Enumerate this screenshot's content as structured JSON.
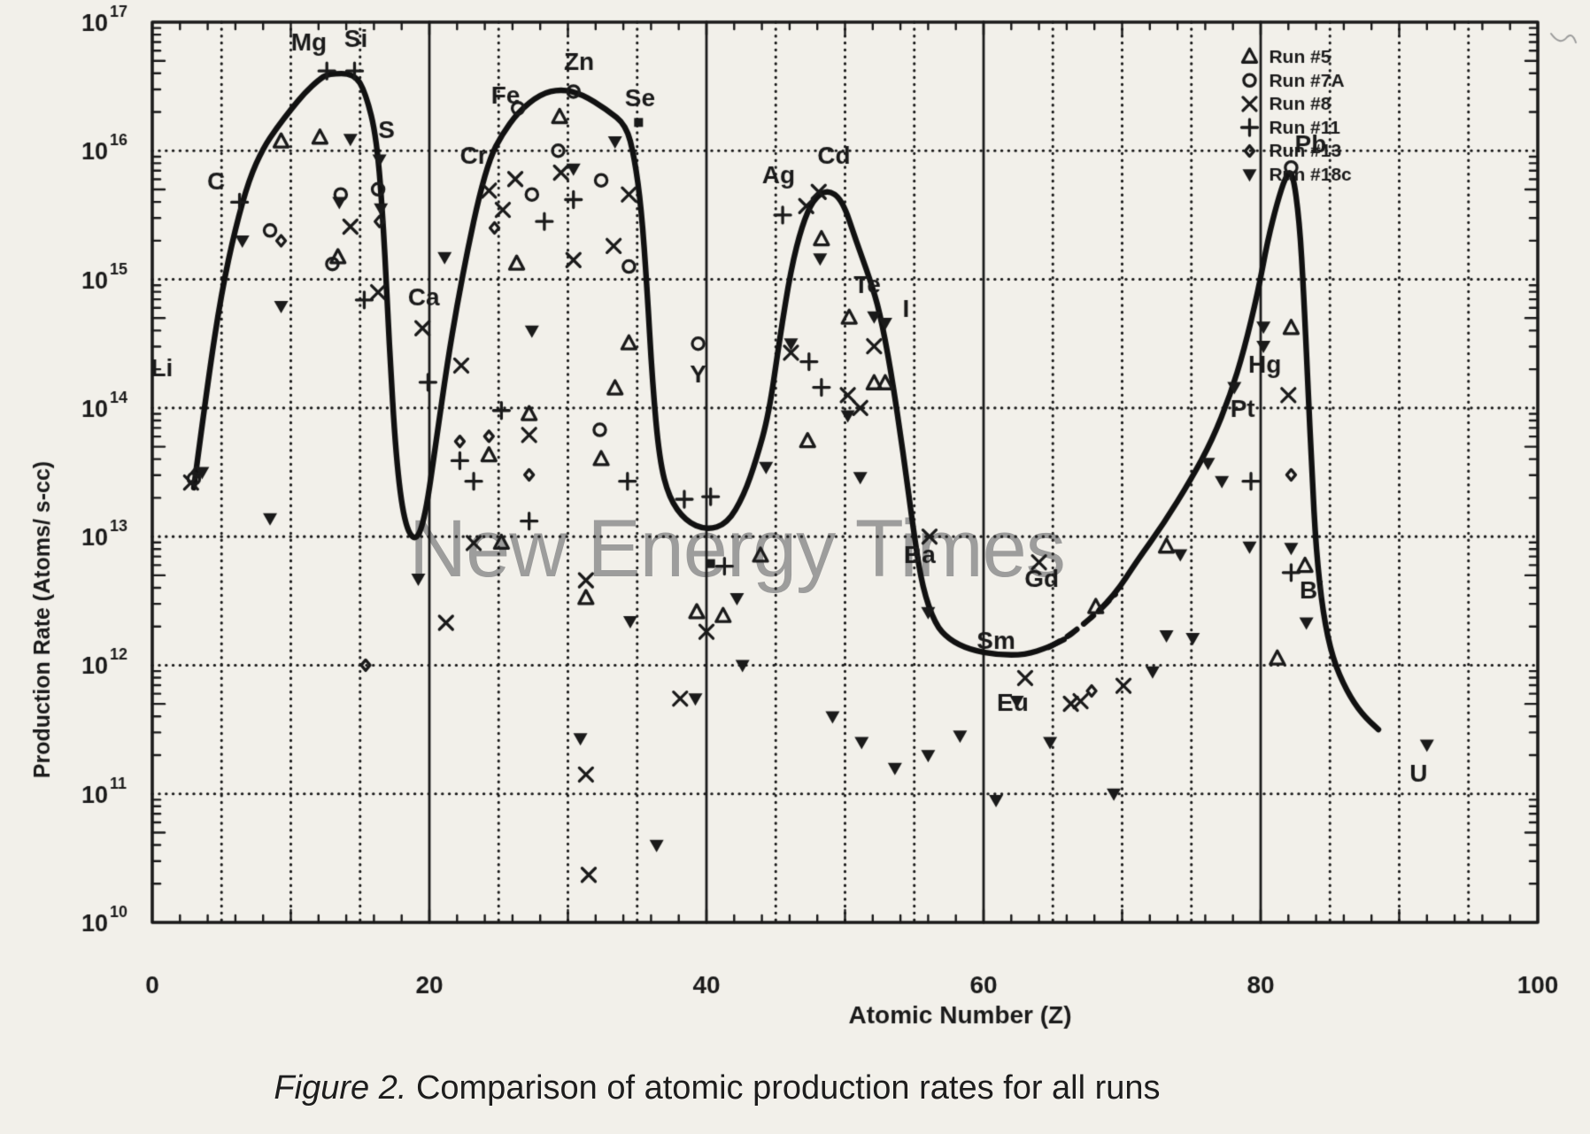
{
  "watermark": "New Energy Times",
  "caption": {
    "prefix": "Figure 2.",
    "text": " Comparison of atomic production rates for all runs"
  },
  "chart_data": {
    "type": "scatter",
    "title": "",
    "xlabel": "Atomic Number (Z)",
    "ylabel": "Production Rate (Atoms/ s-cc)",
    "xlim": [
      0,
      100
    ],
    "x_major_ticks": [
      0,
      20,
      40,
      60,
      80,
      100
    ],
    "x_grid_dotted_step": 5,
    "x_grid_solid": [
      20,
      40,
      60,
      80
    ],
    "y_scale": "log",
    "ylim_exponents": [
      10,
      17
    ],
    "y_tick_labels": [
      {
        "base": "10",
        "exp": "17"
      },
      {
        "base": "10",
        "exp": "16"
      },
      {
        "base": "10",
        "exp": "15"
      },
      {
        "base": "10",
        "exp": "14"
      },
      {
        "base": "10",
        "exp": "13"
      },
      {
        "base": "10",
        "exp": "12"
      },
      {
        "base": "10",
        "exp": "11"
      },
      {
        "base": "10",
        "exp": "10"
      }
    ],
    "grid": "dotted-log-decades",
    "legend_position": "top-right-inside",
    "element_labels": [
      {
        "text": "Li",
        "z": 0.7,
        "log": 14.3
      },
      {
        "text": "C",
        "z": 4.6,
        "log": 15.75
      },
      {
        "text": "Mg",
        "z": 11.3,
        "log": 16.83
      },
      {
        "text": "Si",
        "z": 14.7,
        "log": 16.86
      },
      {
        "text": "S",
        "z": 16.9,
        "log": 16.15
      },
      {
        "text": "Ca",
        "z": 19.6,
        "log": 14.85
      },
      {
        "text": "Cr",
        "z": 23.2,
        "log": 15.95
      },
      {
        "text": "Fe",
        "z": 25.5,
        "log": 16.42
      },
      {
        "text": "Zn",
        "z": 30.8,
        "log": 16.68
      },
      {
        "text": "Se",
        "z": 35.2,
        "log": 16.4
      },
      {
        "text": "Y",
        "z": 39.4,
        "log": 14.25
      },
      {
        "text": "Ag",
        "z": 45.2,
        "log": 15.8
      },
      {
        "text": "Cd",
        "z": 49.2,
        "log": 15.95
      },
      {
        "text": "Te",
        "z": 51.6,
        "log": 14.95
      },
      {
        "text": "I",
        "z": 54.4,
        "log": 14.76
      },
      {
        "text": "Ba",
        "z": 55.4,
        "log": 12.85
      },
      {
        "text": "Sm",
        "z": 60.9,
        "log": 12.18
      },
      {
        "text": "Eu",
        "z": 62.1,
        "log": 11.7
      },
      {
        "text": "Gd",
        "z": 64.2,
        "log": 12.66
      },
      {
        "text": "Pt",
        "z": 78.7,
        "log": 13.98
      },
      {
        "text": "Hg",
        "z": 80.3,
        "log": 14.33
      },
      {
        "text": "Pb",
        "z": 83.6,
        "log": 16.04
      },
      {
        "text": "Bi",
        "z": 83.7,
        "log": 12.57
      },
      {
        "text": "U",
        "z": 91.4,
        "log": 11.15
      }
    ],
    "curve": [
      [
        3,
        13.38
      ],
      [
        4,
        14.2
      ],
      [
        5,
        14.9
      ],
      [
        6,
        15.4
      ],
      [
        7,
        15.78
      ],
      [
        8,
        16.02
      ],
      [
        9,
        16.18
      ],
      [
        10,
        16.32
      ],
      [
        11,
        16.45
      ],
      [
        12,
        16.55
      ],
      [
        12.7,
        16.6
      ],
      [
        14.6,
        16.6
      ],
      [
        15.4,
        16.45
      ],
      [
        16.2,
        16.1
      ],
      [
        16.7,
        15.4
      ],
      [
        17.1,
        14.5
      ],
      [
        17.6,
        13.6
      ],
      [
        18.2,
        13.1
      ],
      [
        19,
        12.95
      ],
      [
        19.7,
        13.15
      ],
      [
        20.5,
        13.75
      ],
      [
        21.3,
        14.35
      ],
      [
        22,
        14.8
      ],
      [
        22.8,
        15.25
      ],
      [
        23.6,
        15.65
      ],
      [
        24.4,
        15.95
      ],
      [
        25.2,
        16.12
      ],
      [
        26.4,
        16.3
      ],
      [
        28,
        16.44
      ],
      [
        29.5,
        16.48
      ],
      [
        31,
        16.44
      ],
      [
        32.8,
        16.32
      ],
      [
        34.2,
        16.2
      ],
      [
        34.8,
        15.95
      ],
      [
        35.3,
        15.55
      ],
      [
        35.7,
        14.95
      ],
      [
        36.1,
        14.2
      ],
      [
        36.6,
        13.6
      ],
      [
        37.3,
        13.3
      ],
      [
        38.5,
        13.12
      ],
      [
        40,
        13.05
      ],
      [
        41.5,
        13.1
      ],
      [
        42.7,
        13.32
      ],
      [
        43.6,
        13.6
      ],
      [
        44.5,
        13.95
      ],
      [
        45.3,
        14.55
      ],
      [
        46.1,
        15.08
      ],
      [
        46.9,
        15.42
      ],
      [
        47.7,
        15.62
      ],
      [
        48.7,
        15.7
      ],
      [
        49.8,
        15.62
      ],
      [
        50.8,
        15.3
      ],
      [
        51.8,
        15.0
      ],
      [
        52.5,
        14.75
      ],
      [
        53.3,
        14.3
      ],
      [
        54.2,
        13.65
      ],
      [
        55,
        13.0
      ],
      [
        55.6,
        12.6
      ],
      [
        56.5,
        12.32
      ],
      [
        57.5,
        12.2
      ],
      [
        59,
        12.12
      ],
      [
        61,
        12.08
      ],
      [
        63,
        12.08
      ],
      [
        64.7,
        12.14
      ],
      [
        65.8,
        12.2
      ],
      [
        67,
        12.3
      ],
      [
        68.3,
        12.42
      ],
      [
        69.5,
        12.55
      ],
      [
        71,
        12.8
      ],
      [
        73,
        13.1
      ],
      [
        75,
        13.45
      ],
      [
        76.5,
        13.75
      ],
      [
        77.8,
        14.1
      ],
      [
        78.8,
        14.45
      ],
      [
        79.8,
        14.9
      ],
      [
        80.5,
        15.3
      ],
      [
        81.2,
        15.6
      ],
      [
        81.8,
        15.8
      ],
      [
        82.3,
        15.85
      ],
      [
        82.8,
        15.45
      ],
      [
        83.1,
        14.9
      ],
      [
        83.4,
        14.2
      ],
      [
        83.7,
        13.5
      ],
      [
        84,
        12.9
      ],
      [
        84.5,
        12.4
      ],
      [
        85.2,
        12.05
      ],
      [
        86.2,
        11.8
      ],
      [
        87.3,
        11.62
      ],
      [
        88.5,
        11.5
      ]
    ],
    "curve_dashed_z_range": [
      65.2,
      69.6
    ],
    "extra_filled_squares": [
      [
        35.1,
        16.22
      ],
      [
        40.3,
        12.79
      ]
    ],
    "series": [
      {
        "name": "Run #5",
        "marker": "triangle-open",
        "points": [
          [
            9.3,
            16.07
          ],
          [
            12.1,
            16.1
          ],
          [
            13.4,
            15.17
          ],
          [
            24.3,
            13.63
          ],
          [
            25.2,
            12.95
          ],
          [
            26.3,
            15.12
          ],
          [
            27.2,
            13.95
          ],
          [
            29.4,
            16.26
          ],
          [
            31.3,
            12.52
          ],
          [
            32.4,
            13.6
          ],
          [
            33.4,
            14.15
          ],
          [
            34.4,
            14.5
          ],
          [
            39.3,
            12.41
          ],
          [
            41.2,
            12.38
          ],
          [
            43.9,
            12.85
          ],
          [
            47.3,
            13.74
          ],
          [
            48.3,
            15.31
          ],
          [
            50.3,
            14.7
          ],
          [
            52.1,
            14.19
          ],
          [
            52.9,
            14.19
          ],
          [
            68.1,
            12.45
          ],
          [
            73.2,
            12.92
          ],
          [
            81.2,
            12.05
          ],
          [
            82.2,
            14.62
          ],
          [
            83.2,
            12.77
          ]
        ]
      },
      {
        "name": "Run #7A",
        "marker": "circle-open",
        "points": [
          [
            3.0,
            13.45
          ],
          [
            8.5,
            15.38
          ],
          [
            13.0,
            15.12
          ],
          [
            13.6,
            15.66
          ],
          [
            16.3,
            15.7
          ],
          [
            26.4,
            16.33
          ],
          [
            27.4,
            15.66
          ],
          [
            29.3,
            16.0
          ],
          [
            30.4,
            16.46
          ],
          [
            32.4,
            15.77
          ],
          [
            32.3,
            13.83
          ],
          [
            34.4,
            15.1
          ],
          [
            39.4,
            14.5
          ],
          [
            82.2,
            15.87
          ]
        ]
      },
      {
        "name": "Run #8",
        "marker": "x-cross",
        "points": [
          [
            2.8,
            13.42
          ],
          [
            14.3,
            15.41
          ],
          [
            16.3,
            14.9
          ],
          [
            19.5,
            14.62
          ],
          [
            21.2,
            12.33
          ],
          [
            22.3,
            14.33
          ],
          [
            23.2,
            12.95
          ],
          [
            24.3,
            15.69
          ],
          [
            25.3,
            15.54
          ],
          [
            26.2,
            15.78
          ],
          [
            27.2,
            13.79
          ],
          [
            29.5,
            15.83
          ],
          [
            30.4,
            15.15
          ],
          [
            31.3,
            12.66
          ],
          [
            31.3,
            11.15
          ],
          [
            31.5,
            10.37
          ],
          [
            33.3,
            15.26
          ],
          [
            34.4,
            15.66
          ],
          [
            38.1,
            11.74
          ],
          [
            40.0,
            12.26
          ],
          [
            46.1,
            14.43
          ],
          [
            47.2,
            15.57
          ],
          [
            48.1,
            15.68
          ],
          [
            50.2,
            14.1
          ],
          [
            51.1,
            14.0
          ],
          [
            52.1,
            14.48
          ],
          [
            56.1,
            13.0
          ],
          [
            63.0,
            11.9
          ],
          [
            64.0,
            12.8
          ],
          [
            66.3,
            11.7
          ],
          [
            67.0,
            11.72
          ],
          [
            70.1,
            11.84
          ],
          [
            82.0,
            14.1
          ]
        ]
      },
      {
        "name": "Run #11",
        "marker": "plus",
        "points": [
          [
            6.3,
            15.6
          ],
          [
            12.6,
            16.62
          ],
          [
            14.6,
            16.62
          ],
          [
            15.3,
            14.84
          ],
          [
            19.9,
            14.2
          ],
          [
            22.2,
            13.59
          ],
          [
            23.2,
            13.43
          ],
          [
            25.2,
            13.98
          ],
          [
            27.2,
            13.12
          ],
          [
            28.3,
            15.45
          ],
          [
            30.4,
            15.62
          ],
          [
            34.3,
            13.43
          ],
          [
            38.4,
            13.29
          ],
          [
            40.3,
            13.31
          ],
          [
            41.3,
            12.77
          ],
          [
            45.5,
            15.5
          ],
          [
            47.4,
            14.36
          ],
          [
            48.3,
            14.16
          ],
          [
            79.3,
            13.43
          ],
          [
            82.2,
            12.72
          ]
        ]
      },
      {
        "name": "Run #13",
        "marker": "diamond-open",
        "points": [
          [
            3.2,
            13.5
          ],
          [
            9.3,
            15.3
          ],
          [
            15.4,
            12.0
          ],
          [
            16.4,
            15.45
          ],
          [
            22.2,
            13.74
          ],
          [
            24.3,
            13.78
          ],
          [
            24.7,
            15.4
          ],
          [
            27.2,
            13.48
          ],
          [
            67.8,
            11.8
          ],
          [
            82.2,
            13.48
          ]
        ]
      },
      {
        "name": "Run #18c",
        "marker": "triangle-down-filled",
        "points": [
          [
            3.6,
            13.5
          ],
          [
            6.5,
            15.3
          ],
          [
            8.5,
            13.14
          ],
          [
            9.3,
            14.79
          ],
          [
            13.5,
            15.6
          ],
          [
            14.3,
            16.09
          ],
          [
            16.4,
            15.93
          ],
          [
            16.5,
            15.55
          ],
          [
            19.2,
            12.67
          ],
          [
            21.1,
            15.17
          ],
          [
            27.4,
            14.6
          ],
          [
            30.4,
            15.86
          ],
          [
            30.9,
            11.43
          ],
          [
            33.4,
            16.07
          ],
          [
            34.5,
            12.34
          ],
          [
            36.4,
            10.6
          ],
          [
            39.2,
            11.74
          ],
          [
            42.2,
            12.52
          ],
          [
            42.6,
            12.0
          ],
          [
            44.3,
            13.54
          ],
          [
            46.1,
            14.5
          ],
          [
            48.2,
            15.16
          ],
          [
            49.1,
            11.6
          ],
          [
            50.2,
            13.94
          ],
          [
            51.1,
            13.46
          ],
          [
            51.2,
            11.4
          ],
          [
            52.1,
            14.71
          ],
          [
            52.9,
            14.66
          ],
          [
            53.6,
            11.2
          ],
          [
            56.0,
            12.41
          ],
          [
            56.0,
            11.3
          ],
          [
            58.3,
            11.45
          ],
          [
            60.9,
            10.95
          ],
          [
            62.4,
            11.72
          ],
          [
            64.8,
            11.4
          ],
          [
            69.4,
            11.0
          ],
          [
            72.2,
            11.95
          ],
          [
            73.2,
            12.23
          ],
          [
            74.2,
            12.86
          ],
          [
            75.1,
            12.21
          ],
          [
            76.2,
            13.57
          ],
          [
            77.2,
            13.43
          ],
          [
            78.1,
            14.16
          ],
          [
            79.2,
            12.92
          ],
          [
            80.2,
            14.63
          ],
          [
            80.2,
            14.48
          ],
          [
            82.2,
            12.91
          ],
          [
            83.3,
            12.33
          ],
          [
            92.0,
            11.38
          ]
        ]
      }
    ],
    "ink_color": "#1a1a1a",
    "paper_color": "#f2f0ea",
    "watermark_color": "#8f8f8f"
  }
}
